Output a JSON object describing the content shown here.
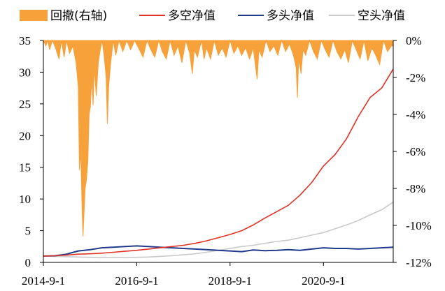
{
  "chart_data": {
    "type": "line",
    "legend_position": "top",
    "grid": false,
    "legend": [
      {
        "key": "drawdown",
        "label": "回撤(右轴)",
        "color": "#F7A13B",
        "kind": "area"
      },
      {
        "key": "long_short",
        "label": "多空净值",
        "color": "#E03326",
        "kind": "line"
      },
      {
        "key": "long",
        "label": "多头净值",
        "color": "#1F3A8A",
        "kind": "line"
      },
      {
        "key": "short",
        "label": "空头净值",
        "color": "#C9C9C9",
        "kind": "line"
      }
    ],
    "x_axis": {
      "start": "2014-09-01",
      "end": "2022-03-01",
      "ticks": [
        {
          "date": "2014-09-01",
          "label": "2014-9-1"
        },
        {
          "date": "2016-09-01",
          "label": "2016-9-1"
        },
        {
          "date": "2018-09-01",
          "label": "2018-9-1"
        },
        {
          "date": "2020-09-01",
          "label": "2020-9-1"
        }
      ]
    },
    "y_left": {
      "min": 0,
      "max": 35,
      "ticks": [
        {
          "value": 0,
          "label": "0"
        },
        {
          "value": 5,
          "label": "5"
        },
        {
          "value": 10,
          "label": "10"
        },
        {
          "value": 15,
          "label": "15"
        },
        {
          "value": 20,
          "label": "20"
        },
        {
          "value": 25,
          "label": "25"
        },
        {
          "value": 30,
          "label": "30"
        },
        {
          "value": 35,
          "label": "35"
        }
      ]
    },
    "y_right": {
      "min": -12,
      "max": 0,
      "unit": "%",
      "ticks": [
        {
          "value": 0,
          "label": "0%"
        },
        {
          "value": -2,
          "label": "-2%"
        },
        {
          "value": -4,
          "label": "-4%"
        },
        {
          "value": -6,
          "label": "-6%"
        },
        {
          "value": -8,
          "label": "-8%"
        },
        {
          "value": -10,
          "label": "-10%"
        },
        {
          "value": -12,
          "label": "-12%"
        }
      ]
    },
    "series": [
      {
        "key": "long_short",
        "values": [
          [
            "2014-09-01",
            1.0
          ],
          [
            "2014-12-01",
            1.05
          ],
          [
            "2015-03-01",
            1.15
          ],
          [
            "2015-06-01",
            1.3
          ],
          [
            "2015-09-01",
            1.35
          ],
          [
            "2015-12-01",
            1.45
          ],
          [
            "2016-03-01",
            1.6
          ],
          [
            "2016-06-01",
            1.75
          ],
          [
            "2016-09-01",
            1.9
          ],
          [
            "2016-12-01",
            2.1
          ],
          [
            "2017-03-01",
            2.3
          ],
          [
            "2017-06-01",
            2.5
          ],
          [
            "2017-09-01",
            2.7
          ],
          [
            "2017-12-01",
            3.0
          ],
          [
            "2018-03-01",
            3.4
          ],
          [
            "2018-06-01",
            3.9
          ],
          [
            "2018-09-01",
            4.4
          ],
          [
            "2018-12-01",
            5.0
          ],
          [
            "2019-03-01",
            5.9
          ],
          [
            "2019-06-01",
            7.0
          ],
          [
            "2019-09-01",
            8.0
          ],
          [
            "2019-12-01",
            9.0
          ],
          [
            "2020-03-01",
            10.6
          ],
          [
            "2020-06-01",
            12.6
          ],
          [
            "2020-09-01",
            15.2
          ],
          [
            "2020-12-01",
            17.0
          ],
          [
            "2021-03-01",
            19.5
          ],
          [
            "2021-06-01",
            23.0
          ],
          [
            "2021-09-01",
            26.0
          ],
          [
            "2021-12-01",
            27.5
          ],
          [
            "2022-03-01",
            30.5
          ]
        ]
      },
      {
        "key": "long",
        "values": [
          [
            "2014-09-01",
            1.0
          ],
          [
            "2014-12-01",
            1.05
          ],
          [
            "2015-03-01",
            1.3
          ],
          [
            "2015-06-01",
            1.8
          ],
          [
            "2015-09-01",
            2.0
          ],
          [
            "2015-12-01",
            2.3
          ],
          [
            "2016-03-01",
            2.4
          ],
          [
            "2016-06-01",
            2.5
          ],
          [
            "2016-09-01",
            2.6
          ],
          [
            "2016-12-01",
            2.5
          ],
          [
            "2017-03-01",
            2.4
          ],
          [
            "2017-06-01",
            2.3
          ],
          [
            "2017-09-01",
            2.2
          ],
          [
            "2017-12-01",
            2.1
          ],
          [
            "2018-03-01",
            2.0
          ],
          [
            "2018-06-01",
            1.9
          ],
          [
            "2018-09-01",
            1.8
          ],
          [
            "2018-12-01",
            1.7
          ],
          [
            "2019-03-01",
            1.95
          ],
          [
            "2019-06-01",
            1.85
          ],
          [
            "2019-09-01",
            1.9
          ],
          [
            "2019-12-01",
            2.0
          ],
          [
            "2020-03-01",
            1.9
          ],
          [
            "2020-06-01",
            2.1
          ],
          [
            "2020-09-01",
            2.3
          ],
          [
            "2020-12-01",
            2.2
          ],
          [
            "2021-03-01",
            2.2
          ],
          [
            "2021-06-01",
            2.1
          ],
          [
            "2021-09-01",
            2.2
          ],
          [
            "2021-12-01",
            2.3
          ],
          [
            "2022-03-01",
            2.4
          ]
        ]
      },
      {
        "key": "short",
        "values": [
          [
            "2014-09-01",
            1.0
          ],
          [
            "2014-12-01",
            0.95
          ],
          [
            "2015-03-01",
            0.9
          ],
          [
            "2015-06-01",
            0.85
          ],
          [
            "2015-09-01",
            0.8
          ],
          [
            "2015-12-01",
            0.75
          ],
          [
            "2016-03-01",
            0.75
          ],
          [
            "2016-06-01",
            0.78
          ],
          [
            "2016-09-01",
            0.8
          ],
          [
            "2016-12-01",
            0.85
          ],
          [
            "2017-03-01",
            0.95
          ],
          [
            "2017-06-01",
            1.05
          ],
          [
            "2017-09-01",
            1.2
          ],
          [
            "2017-12-01",
            1.35
          ],
          [
            "2018-03-01",
            1.6
          ],
          [
            "2018-06-01",
            1.9
          ],
          [
            "2018-09-01",
            2.2
          ],
          [
            "2018-12-01",
            2.5
          ],
          [
            "2019-03-01",
            2.7
          ],
          [
            "2019-06-01",
            3.0
          ],
          [
            "2019-09-01",
            3.3
          ],
          [
            "2019-12-01",
            3.5
          ],
          [
            "2020-03-01",
            3.9
          ],
          [
            "2020-06-01",
            4.3
          ],
          [
            "2020-09-01",
            4.7
          ],
          [
            "2020-12-01",
            5.3
          ],
          [
            "2021-03-01",
            5.9
          ],
          [
            "2021-06-01",
            6.6
          ],
          [
            "2021-09-01",
            7.5
          ],
          [
            "2021-12-01",
            8.3
          ],
          [
            "2022-03-01",
            9.5
          ]
        ]
      },
      {
        "key": "drawdown",
        "axis": "right",
        "values": [
          [
            "2014-09-01",
            0.0
          ],
          [
            "2014-09-20",
            -0.3
          ],
          [
            "2014-10-05",
            0.0
          ],
          [
            "2014-10-20",
            -0.5
          ],
          [
            "2014-11-10",
            0.0
          ],
          [
            "2014-12-05",
            -0.4
          ],
          [
            "2015-01-01",
            -1.0
          ],
          [
            "2015-01-20",
            0.0
          ],
          [
            "2015-02-10",
            -0.9
          ],
          [
            "2015-03-01",
            0.0
          ],
          [
            "2015-03-25",
            -0.7
          ],
          [
            "2015-04-20",
            -0.3
          ],
          [
            "2015-05-15",
            -1.2
          ],
          [
            "2015-06-01",
            -2.5
          ],
          [
            "2015-06-10",
            -7.0
          ],
          [
            "2015-06-20",
            -6.0
          ],
          [
            "2015-07-01",
            -9.0
          ],
          [
            "2015-07-08",
            -10.6
          ],
          [
            "2015-07-15",
            -9.5
          ],
          [
            "2015-07-25",
            -8.0
          ],
          [
            "2015-08-05",
            -7.5
          ],
          [
            "2015-08-15",
            -6.5
          ],
          [
            "2015-08-25",
            -4.0
          ],
          [
            "2015-09-05",
            -3.5
          ],
          [
            "2015-09-15",
            -2.0
          ],
          [
            "2015-09-25",
            -3.5
          ],
          [
            "2015-10-05",
            -1.5
          ],
          [
            "2015-10-20",
            -3.0
          ],
          [
            "2015-11-05",
            -1.2
          ],
          [
            "2015-11-20",
            -0.5
          ],
          [
            "2015-12-05",
            0.0
          ],
          [
            "2015-12-20",
            -0.8
          ],
          [
            "2016-01-05",
            -2.0
          ],
          [
            "2016-01-15",
            -4.5
          ],
          [
            "2016-01-25",
            -2.5
          ],
          [
            "2016-02-10",
            -1.2
          ],
          [
            "2016-03-01",
            0.0
          ],
          [
            "2016-03-20",
            -0.8
          ],
          [
            "2016-04-15",
            0.0
          ],
          [
            "2016-05-15",
            -0.6
          ],
          [
            "2016-06-15",
            0.0
          ],
          [
            "2016-07-15",
            -0.5
          ],
          [
            "2016-08-15",
            0.0
          ],
          [
            "2016-09-15",
            -0.4
          ],
          [
            "2016-10-20",
            -0.9
          ],
          [
            "2016-11-20",
            0.0
          ],
          [
            "2016-12-20",
            -0.5
          ],
          [
            "2017-01-20",
            -0.9
          ],
          [
            "2017-02-20",
            0.0
          ],
          [
            "2017-03-20",
            -0.6
          ],
          [
            "2017-04-20",
            -1.0
          ],
          [
            "2017-05-20",
            0.0
          ],
          [
            "2017-06-20",
            -0.8
          ],
          [
            "2017-07-20",
            -0.3
          ],
          [
            "2017-08-20",
            -1.2
          ],
          [
            "2017-09-20",
            0.0
          ],
          [
            "2017-10-20",
            -0.7
          ],
          [
            "2017-11-10",
            -1.8
          ],
          [
            "2017-11-25",
            -0.5
          ],
          [
            "2017-12-20",
            -0.9
          ],
          [
            "2018-01-20",
            0.0
          ],
          [
            "2018-02-10",
            -1.0
          ],
          [
            "2018-03-01",
            -0.4
          ],
          [
            "2018-04-01",
            -1.0
          ],
          [
            "2018-05-01",
            0.0
          ],
          [
            "2018-06-01",
            -0.8
          ],
          [
            "2018-07-01",
            -0.4
          ],
          [
            "2018-08-01",
            -0.9
          ],
          [
            "2018-09-01",
            0.0
          ],
          [
            "2018-10-01",
            -0.7
          ],
          [
            "2018-11-01",
            -0.3
          ],
          [
            "2018-12-01",
            -0.8
          ],
          [
            "2019-01-01",
            -0.4
          ],
          [
            "2019-02-01",
            -1.0
          ],
          [
            "2019-03-01",
            -0.4
          ],
          [
            "2019-04-01",
            -2.1
          ],
          [
            "2019-04-15",
            -0.5
          ],
          [
            "2019-05-10",
            -0.9
          ],
          [
            "2019-06-10",
            0.0
          ],
          [
            "2019-07-10",
            -0.6
          ],
          [
            "2019-08-10",
            -0.3
          ],
          [
            "2019-09-10",
            -0.8
          ],
          [
            "2019-10-10",
            0.0
          ],
          [
            "2019-11-10",
            -0.6
          ],
          [
            "2019-12-10",
            -0.2
          ],
          [
            "2020-01-10",
            -0.8
          ],
          [
            "2020-02-01",
            -1.5
          ],
          [
            "2020-02-10",
            -3.1
          ],
          [
            "2020-02-20",
            -1.0
          ],
          [
            "2020-03-10",
            -1.8
          ],
          [
            "2020-03-25",
            -0.5
          ],
          [
            "2020-04-15",
            -0.8
          ],
          [
            "2020-05-15",
            0.0
          ],
          [
            "2020-06-15",
            -0.6
          ],
          [
            "2020-07-15",
            -1.0
          ],
          [
            "2020-08-15",
            0.0
          ],
          [
            "2020-09-15",
            -0.5
          ],
          [
            "2020-10-15",
            -0.9
          ],
          [
            "2020-11-15",
            0.0
          ],
          [
            "2020-12-15",
            -0.6
          ],
          [
            "2021-01-15",
            -1.0
          ],
          [
            "2021-02-15",
            -0.5
          ],
          [
            "2021-03-15",
            -1.2
          ],
          [
            "2021-04-15",
            0.0
          ],
          [
            "2021-05-15",
            -0.5
          ],
          [
            "2021-06-15",
            -1.0
          ],
          [
            "2021-07-15",
            0.0
          ],
          [
            "2021-08-15",
            -1.1
          ],
          [
            "2021-09-15",
            -0.4
          ],
          [
            "2021-10-15",
            -0.8
          ],
          [
            "2021-11-15",
            -1.3
          ],
          [
            "2021-12-15",
            0.0
          ],
          [
            "2022-01-15",
            -0.6
          ],
          [
            "2022-02-15",
            -0.3
          ],
          [
            "2022-03-01",
            -0.3
          ]
        ]
      }
    ]
  }
}
